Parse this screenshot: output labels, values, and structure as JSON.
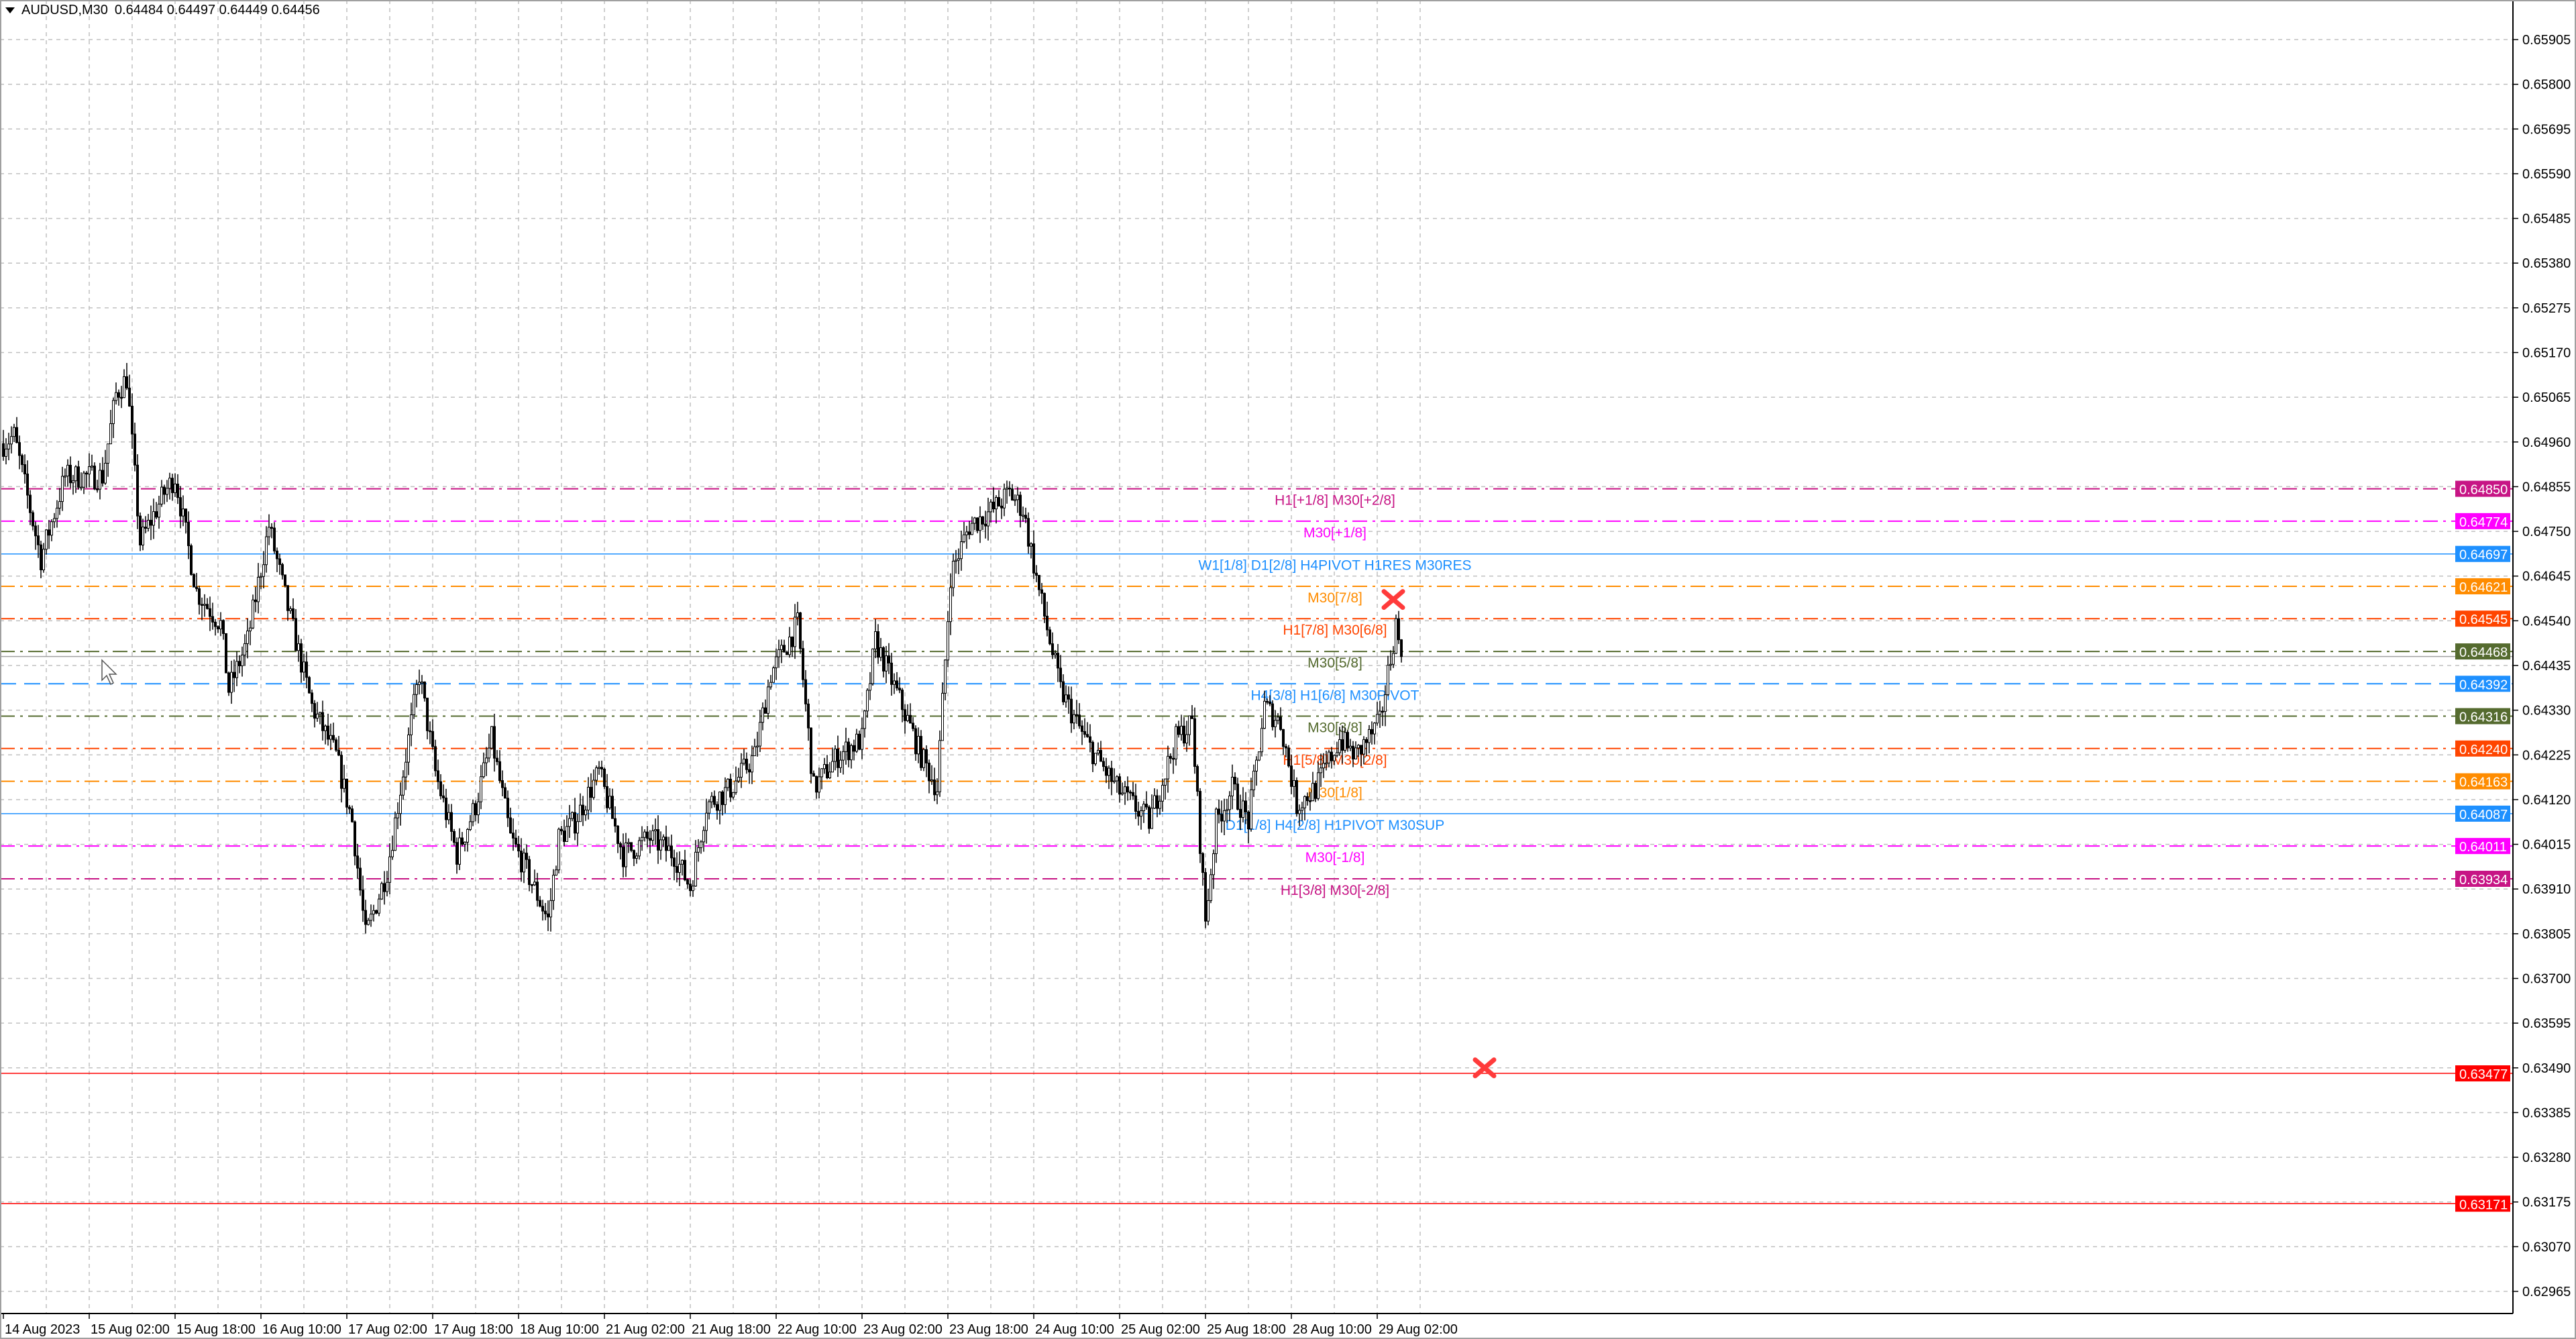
{
  "header": {
    "symbol": "AUDUSD,M30",
    "ohlc": "0.64484 0.64497 0.64449 0.64456"
  },
  "chart_data": {
    "type": "candlestick",
    "symbol": "AUDUSD",
    "timeframe": "M30",
    "ylim": [
      0.6293,
      0.6599
    ],
    "grid": true,
    "y_ticks": [
      "0.65905",
      "0.65800",
      "0.65695",
      "0.65590",
      "0.65485",
      "0.65380",
      "0.65275",
      "0.65170",
      "0.65065",
      "0.64960",
      "0.64855",
      "0.64750",
      "0.64645",
      "0.64540",
      "0.64435",
      "0.64330",
      "0.64225",
      "0.64120",
      "0.64015",
      "0.63910",
      "0.63805",
      "0.63700",
      "0.63595",
      "0.63490",
      "0.63385",
      "0.63280",
      "0.63175",
      "0.63070",
      "0.62965"
    ],
    "x_ticks": [
      "14 Aug 2023",
      "15 Aug 02:00",
      "15 Aug 18:00",
      "16 Aug 10:00",
      "17 Aug 02:00",
      "17 Aug 18:00",
      "18 Aug 10:00",
      "21 Aug 02:00",
      "21 Aug 18:00",
      "22 Aug 10:00",
      "23 Aug 02:00",
      "23 Aug 18:00",
      "24 Aug 10:00",
      "25 Aug 02:00",
      "25 Aug 18:00",
      "28 Aug 10:00",
      "29 Aug 02:00"
    ],
    "trading_days": [
      "14",
      "15",
      "16",
      "17",
      "18",
      "21",
      "22",
      "23",
      "24",
      "25",
      "28",
      "29"
    ],
    "first_bar": "14 Aug 10:00",
    "last_bar": "29 Aug 06:30",
    "bid": 0.64456,
    "close_path": [
      [
        "14 Aug 10:00",
        0.64956
      ],
      [
        "14 Aug 12:00",
        0.64975
      ],
      [
        "14 Aug 17:00",
        0.64686
      ],
      [
        "14 Aug 21:30",
        0.64879
      ],
      [
        "15 Aug 04:30",
        0.64879
      ],
      [
        "15 Aug 07:00",
        0.65072
      ],
      [
        "15 Aug 09:00",
        0.6511
      ],
      [
        "15 Aug 11:30",
        0.64724
      ],
      [
        "15 Aug 16:00",
        0.6484
      ],
      [
        "15 Aug 18:00",
        0.64879
      ],
      [
        "15 Aug 22:00",
        0.64609
      ],
      [
        "16 Aug 02:30",
        0.64532
      ],
      [
        "16 Aug 04:00",
        0.64377
      ],
      [
        "16 Aug 07:30",
        0.64493
      ],
      [
        "16 Aug 11:30",
        0.64763
      ],
      [
        "16 Aug 15:00",
        0.6457
      ],
      [
        "16 Aug 19:30",
        0.64339
      ],
      [
        "17 Aug 00:00",
        0.64223
      ],
      [
        "17 Aug 03:00",
        0.64069
      ],
      [
        "17 Aug 05:30",
        0.63799
      ],
      [
        "17 Aug 09:30",
        0.63953
      ],
      [
        "17 Aug 12:30",
        0.64184
      ],
      [
        "17 Aug 15:30",
        0.64416
      ],
      [
        "17 Aug 18:30",
        0.64184
      ],
      [
        "17 Aug 22:30",
        0.63991
      ],
      [
        "18 Aug 02:00",
        0.64107
      ],
      [
        "18 Aug 05:00",
        0.64262
      ],
      [
        "18 Aug 08:30",
        0.6403
      ],
      [
        "18 Aug 11:30",
        0.63953
      ],
      [
        "18 Aug 15:30",
        0.63837
      ],
      [
        "18 Aug 17:30",
        0.6403
      ],
      [
        "18 Aug 20:30",
        0.64069
      ],
      [
        "21 Aug 01:00",
        0.64184
      ],
      [
        "21 Aug 05:30",
        0.63991
      ],
      [
        "21 Aug 10:30",
        0.6403
      ],
      [
        "21 Aug 15:00",
        0.63991
      ],
      [
        "21 Aug 18:00",
        0.63914
      ],
      [
        "21 Aug 21:00",
        0.64107
      ],
      [
        "22 Aug 01:30",
        0.64146
      ],
      [
        "22 Aug 06:00",
        0.64223
      ],
      [
        "22 Aug 09:00",
        0.64416
      ],
      [
        "22 Aug 14:00",
        0.64532
      ],
      [
        "22 Aug 17:00",
        0.64146
      ],
      [
        "22 Aug 21:30",
        0.64223
      ],
      [
        "23 Aug 02:00",
        0.64262
      ],
      [
        "23 Aug 04:30",
        0.64493
      ],
      [
        "23 Aug 09:30",
        0.64339
      ],
      [
        "23 Aug 13:00",
        0.64223
      ],
      [
        "23 Aug 16:00",
        0.64146
      ],
      [
        "23 Aug 18:30",
        0.64647
      ],
      [
        "23 Aug 22:00",
        0.64763
      ],
      [
        "24 Aug 02:30",
        0.64802
      ],
      [
        "24 Aug 05:30",
        0.6484
      ],
      [
        "24 Aug 08:00",
        0.64802
      ],
      [
        "24 Aug 11:00",
        0.64609
      ],
      [
        "24 Aug 15:00",
        0.64377
      ],
      [
        "24 Aug 19:30",
        0.64262
      ],
      [
        "25 Aug 01:30",
        0.64146
      ],
      [
        "25 Aug 07:30",
        0.64069
      ],
      [
        "25 Aug 12:30",
        0.64262
      ],
      [
        "25 Aug 15:30",
        0.643
      ],
      [
        "25 Aug 18:00",
        0.63837
      ],
      [
        "25 Aug 20:00",
        0.64069
      ],
      [
        "25 Aug 23:00",
        0.64146
      ],
      [
        "28 Aug 02:00",
        0.64069
      ],
      [
        "28 Aug 05:00",
        0.64339
      ],
      [
        "28 Aug 08:00",
        0.643
      ],
      [
        "28 Aug 11:00",
        0.64107
      ],
      [
        "28 Aug 14:30",
        0.64146
      ],
      [
        "28 Aug 19:00",
        0.64262
      ],
      [
        "28 Aug 22:00",
        0.64223
      ],
      [
        "29 Aug 02:30",
        0.643
      ],
      [
        "29 Aug 05:30",
        0.64532
      ],
      [
        "29 Aug 06:30",
        0.64456
      ]
    ],
    "levels": [
      {
        "price": 0.6485,
        "price_label": "0.64850",
        "label": "H1[+1/8] M30[+2/8]",
        "color": "#c71585",
        "style": "dashdot"
      },
      {
        "price": 0.64774,
        "price_label": "0.64774",
        "label": "M30[+1/8]",
        "color": "#ff00ff",
        "style": "dashdot"
      },
      {
        "price": 0.64697,
        "price_label": "0.64697",
        "label": "W1[1/8] D1[2/8] H4PIVOT H1RES M30RES",
        "color": "#1e90ff",
        "style": "solid"
      },
      {
        "price": 0.64621,
        "price_label": "0.64621",
        "label": "M30[7/8]",
        "color": "#ff8c00",
        "style": "dashdot"
      },
      {
        "price": 0.64545,
        "price_label": "0.64545",
        "label": "H1[7/8] M30[6/8]",
        "color": "#ff4500",
        "style": "dashdot"
      },
      {
        "price": 0.64468,
        "price_label": "0.64468",
        "label": "M30[5/8]",
        "color": "#556b2f",
        "style": "dashdot"
      },
      {
        "price": 0.64392,
        "price_label": "0.64392",
        "label": "H4[3/8] H1[6/8] M30PIVOT",
        "color": "#1e90ff",
        "style": "dash"
      },
      {
        "price": 0.64316,
        "price_label": "0.64316",
        "label": "M30[3/8]",
        "color": "#556b2f",
        "style": "dashdot"
      },
      {
        "price": 0.6424,
        "price_label": "0.64240",
        "label": "H1[5/8] M30[2/8]",
        "color": "#ff4500",
        "style": "dashdot"
      },
      {
        "price": 0.64163,
        "price_label": "0.64163",
        "label": "M30[1/8]",
        "color": "#ff8c00",
        "style": "dashdot"
      },
      {
        "price": 0.64087,
        "price_label": "0.64087",
        "label": "D1[1/8] H4[2/8] H1PIVOT M30SUP",
        "color": "#1e90ff",
        "style": "solid"
      },
      {
        "price": 0.64011,
        "price_label": "0.64011",
        "label": "M30[-1/8]",
        "color": "#ff00ff",
        "style": "dashdot"
      },
      {
        "price": 0.63934,
        "price_label": "0.63934",
        "label": "H1[3/8] M30[-2/8]",
        "color": "#c71585",
        "style": "dashdot"
      },
      {
        "price": 0.63477,
        "price_label": "0.63477",
        "label": "",
        "color": "#ff0000",
        "style": "solid"
      },
      {
        "price": 0.63171,
        "price_label": "0.63171",
        "label": "",
        "color": "#ff0000",
        "style": "solid"
      }
    ],
    "markers": [
      {
        "type": "cross",
        "time": "29 Aug 05:00",
        "price": 0.6459,
        "color": "#ff3b3b"
      },
      {
        "type": "cross",
        "time": "29 Aug 22:00",
        "price": 0.6349,
        "color": "#ff3b3b"
      }
    ],
    "colors": {
      "bull_body": "#ffffff",
      "bear_body": "#000000",
      "wick": "#000000",
      "grid": "#c0c0c0",
      "bid_line": "#a0a0a0"
    }
  }
}
